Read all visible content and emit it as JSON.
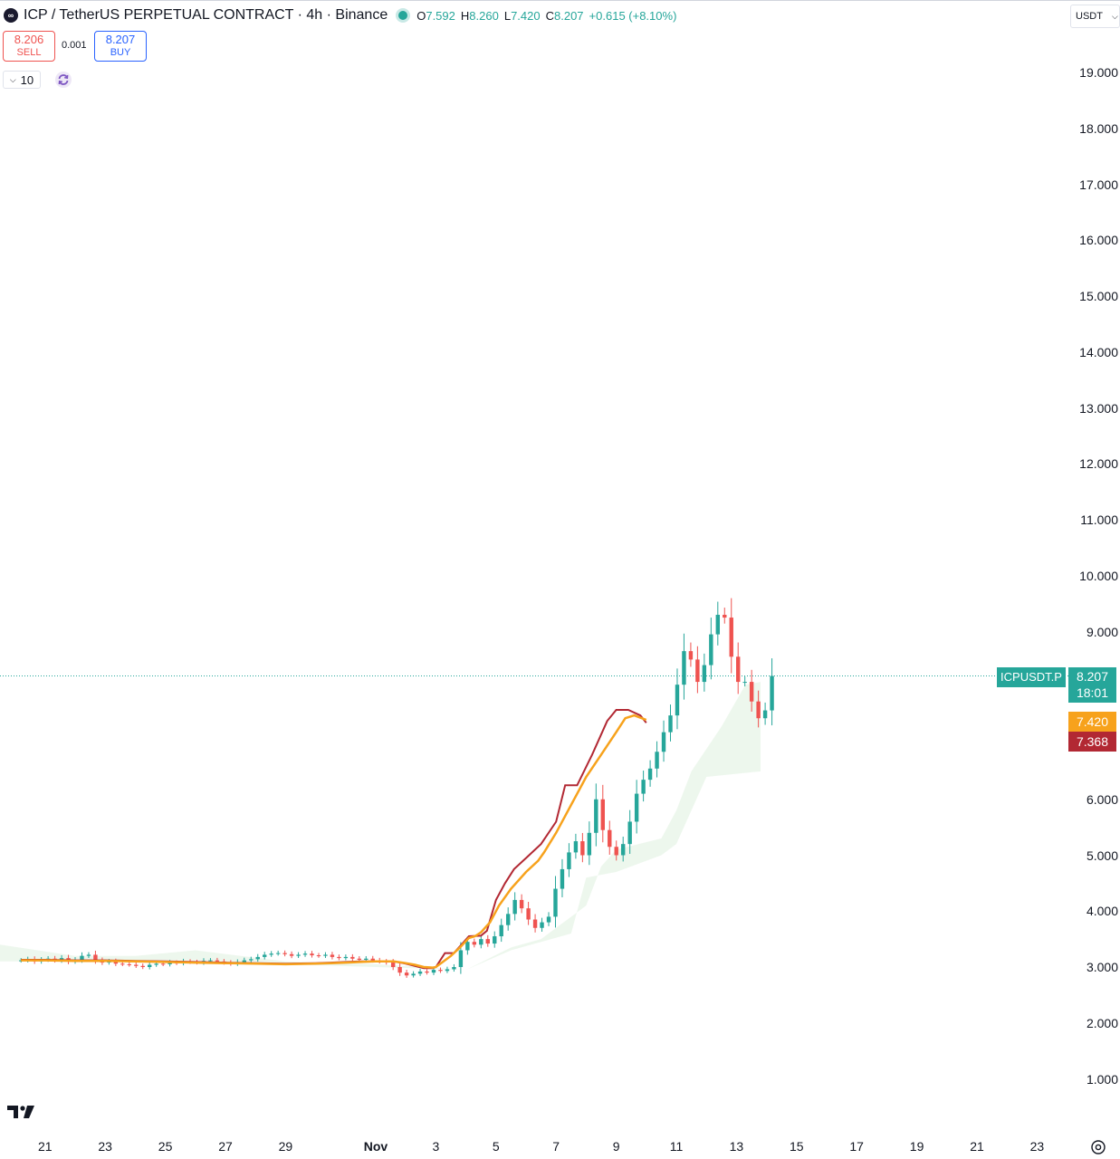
{
  "header": {
    "logo_text": "∞",
    "title": "ICP / TetherUS PERPETUAL CONTRACT · 4h · Binance",
    "ohlc": [
      {
        "k": "O",
        "v": "7.592"
      },
      {
        "k": "H",
        "v": "8.260"
      },
      {
        "k": "L",
        "v": "7.420"
      },
      {
        "k": "C",
        "v": "8.207"
      },
      {
        "k": "",
        "v": "+0.615 (+8.10%)"
      }
    ]
  },
  "trade": {
    "sell_price": "8.206",
    "sell_label": "SELL",
    "spread": "0.001",
    "buy_price": "8.207",
    "buy_label": "BUY"
  },
  "indicators": {
    "collapse_label": "10"
  },
  "currency": {
    "label": "USDT"
  },
  "colors": {
    "up": "#26a69a",
    "down": "#ef5350",
    "ma_fast": "#f7a21c",
    "ma_slow": "#b22833",
    "cloud": "#e8f5e9"
  },
  "price_tags": {
    "symbol": "ICPUSDT.P",
    "last": "8.207",
    "countdown": "18:01",
    "ma_fast": "7.420",
    "ma_slow": "7.368"
  },
  "chart_data": {
    "type": "candlestick",
    "y_axis": {
      "ticks": [
        "19.000",
        "18.000",
        "17.000",
        "16.000",
        "15.000",
        "14.000",
        "13.000",
        "12.000",
        "11.000",
        "10.000",
        "9.000",
        "6.000",
        "5.000",
        "4.000",
        "3.000",
        "2.000",
        "1.000"
      ],
      "tick_values": [
        19,
        18,
        17,
        16,
        15,
        14,
        13,
        12,
        11,
        10,
        9,
        6,
        5,
        4,
        3,
        2,
        1
      ],
      "range": [
        0.5,
        20
      ]
    },
    "x_axis": {
      "ticks": [
        "21",
        "23",
        "25",
        "27",
        "29",
        "Nov",
        "3",
        "5",
        "7",
        "9",
        "11",
        "13",
        "15",
        "17",
        "19",
        "21",
        "23"
      ],
      "tick_days": [
        -11,
        -9,
        -7,
        -5,
        -3,
        0,
        2,
        4,
        6,
        8,
        10,
        12,
        14,
        16,
        18,
        20,
        22
      ],
      "bold": [
        "Nov"
      ]
    },
    "last_price": 8.207,
    "candles_from_day": -11.8,
    "candle_interval_days": 0.1667,
    "closes": [
      3.12,
      3.14,
      3.1,
      3.13,
      3.15,
      3.12,
      3.16,
      3.1,
      3.13,
      3.2,
      3.22,
      3.12,
      3.08,
      3.1,
      3.06,
      3.05,
      3.04,
      3.02,
      3.0,
      3.04,
      3.06,
      3.05,
      3.08,
      3.07,
      3.1,
      3.09,
      3.08,
      3.11,
      3.12,
      3.1,
      3.08,
      3.06,
      3.09,
      3.12,
      3.14,
      3.18,
      3.22,
      3.24,
      3.25,
      3.23,
      3.2,
      3.22,
      3.24,
      3.21,
      3.2,
      3.22,
      3.18,
      3.16,
      3.18,
      3.15,
      3.13,
      3.15,
      3.12,
      3.1,
      3.08,
      3.0,
      2.9,
      2.85,
      2.88,
      2.92,
      2.9,
      2.95,
      2.93,
      2.96,
      3.0,
      3.3,
      3.45,
      3.4,
      3.5,
      3.42,
      3.55,
      3.75,
      3.95,
      4.2,
      4.05,
      3.85,
      3.7,
      3.8,
      3.9,
      4.4,
      4.75,
      5.05,
      5.25,
      5.0,
      5.4,
      6.0,
      5.45,
      5.15,
      5.0,
      5.2,
      5.6,
      6.1,
      6.35,
      6.55,
      6.85,
      7.2,
      7.5,
      8.05,
      8.65,
      8.5,
      8.1,
      8.4,
      8.95,
      9.3,
      9.25,
      8.55,
      8.1,
      8.1,
      7.75,
      7.45,
      7.59,
      8.207
    ],
    "ma_fast_values": [
      3.12,
      3.12,
      3.11,
      3.11,
      3.1,
      3.09,
      3.08,
      3.07,
      3.06,
      3.05,
      3.06,
      3.07,
      3.08,
      3.09,
      3.1,
      3.1,
      3.1,
      3.07,
      3.04,
      3.0,
      2.99,
      3.0,
      3.08,
      3.2,
      3.35,
      3.52,
      3.55,
      3.62,
      3.8,
      4.1,
      4.4,
      4.7,
      4.9,
      5.05,
      5.4,
      5.9,
      6.4,
      6.8,
      7.2,
      7.45,
      7.5,
      7.42
    ],
    "ma_fast_days": [
      -11.8,
      -11,
      -10,
      -9,
      -8,
      -7,
      -6,
      -5,
      -4,
      -3,
      -2,
      -1.5,
      -1,
      -0.5,
      0,
      0.3,
      0.6,
      1.0,
      1.3,
      1.6,
      1.9,
      2.0,
      2.2,
      2.5,
      2.8,
      3.1,
      3.3,
      3.5,
      3.8,
      4.1,
      4.5,
      5.0,
      5.4,
      5.6,
      6.0,
      6.5,
      7.0,
      7.5,
      8.0,
      8.3,
      8.6,
      9.0
    ],
    "ma_slow_values": [
      3.13,
      3.13,
      3.12,
      3.12,
      3.11,
      3.1,
      3.09,
      3.08,
      3.07,
      3.06,
      3.07,
      3.08,
      3.09,
      3.1,
      3.1,
      3.1,
      3.1,
      3.06,
      3.02,
      2.98,
      2.98,
      3.0,
      3.25,
      3.25,
      3.55,
      3.56,
      3.65,
      4.2,
      4.5,
      4.75,
      4.95,
      5.2,
      5.6,
      6.25,
      6.25,
      6.8,
      7.4,
      7.6,
      7.6,
      7.5,
      7.368
    ],
    "ma_slow_days": [
      -11.8,
      -11,
      -10,
      -9,
      -8,
      -7,
      -6,
      -5,
      -4,
      -3,
      -2,
      -1.5,
      -1,
      -0.5,
      0,
      0.3,
      0.6,
      1.0,
      1.3,
      1.6,
      1.9,
      2.0,
      2.3,
      2.6,
      3.1,
      3.5,
      3.7,
      4.0,
      4.3,
      4.6,
      5.0,
      5.5,
      6.0,
      6.3,
      6.7,
      7.2,
      7.7,
      8.0,
      8.4,
      8.8,
      9.0
    ]
  }
}
